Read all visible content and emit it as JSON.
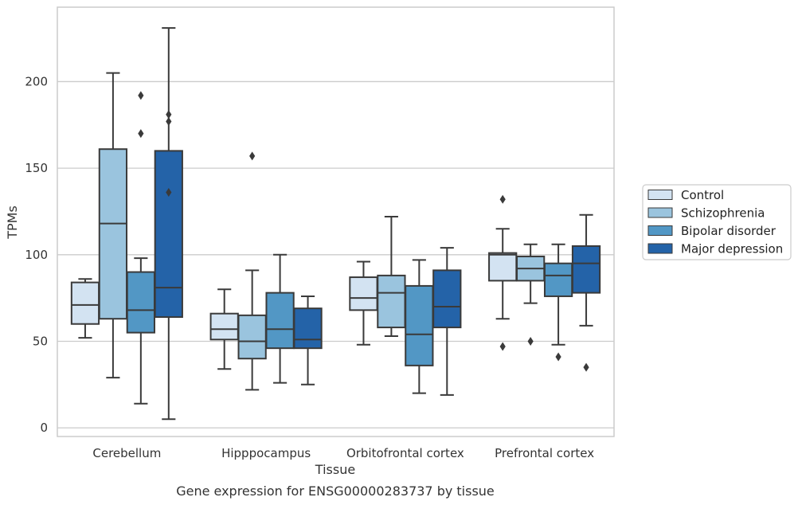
{
  "chart_data": {
    "type": "box",
    "title": "",
    "caption": "Gene expression for ENSG00000283737 by tissue",
    "xlabel": "Tissue",
    "ylabel": "TPMs",
    "ylim": [
      -5,
      243
    ],
    "yticks": [
      0,
      50,
      100,
      150,
      200
    ],
    "grid": "horizontal",
    "legend_position": "right",
    "categories": [
      "Cerebellum",
      "Hipppocampus",
      "Orbitofrontal cortex",
      "Prefrontal cortex"
    ],
    "series": [
      {
        "name": "Control",
        "color": "#d3e3f2",
        "boxes": [
          {
            "whislo": 52,
            "q1": 60,
            "med": 71,
            "q3": 84,
            "whishi": 86,
            "fliers": []
          },
          {
            "whislo": 34,
            "q1": 51,
            "med": 57,
            "q3": 66,
            "whishi": 80,
            "fliers": []
          },
          {
            "whislo": 48,
            "q1": 68,
            "med": 75,
            "q3": 87,
            "whishi": 96,
            "fliers": []
          },
          {
            "whislo": 63,
            "q1": 85,
            "med": 100,
            "q3": 101,
            "whishi": 115,
            "fliers": [
              47,
              132
            ]
          }
        ]
      },
      {
        "name": "Schizophrenia",
        "color": "#9ac4de",
        "boxes": [
          {
            "whislo": 29,
            "q1": 63,
            "med": 118,
            "q3": 161,
            "whishi": 205,
            "fliers": []
          },
          {
            "whislo": 22,
            "q1": 40,
            "med": 50,
            "q3": 65,
            "whishi": 91,
            "fliers": [
              157
            ]
          },
          {
            "whislo": 53,
            "q1": 58,
            "med": 78,
            "q3": 88,
            "whishi": 122,
            "fliers": []
          },
          {
            "whislo": 72,
            "q1": 85,
            "med": 92,
            "q3": 99,
            "whishi": 106,
            "fliers": [
              50
            ]
          }
        ]
      },
      {
        "name": "Bipolar disorder",
        "color": "#5297c5",
        "boxes": [
          {
            "whislo": 14,
            "q1": 55,
            "med": 68,
            "q3": 90,
            "whishi": 98,
            "fliers": [
              170,
              192
            ]
          },
          {
            "whislo": 26,
            "q1": 46,
            "med": 57,
            "q3": 78,
            "whishi": 100,
            "fliers": []
          },
          {
            "whislo": 20,
            "q1": 36,
            "med": 54,
            "q3": 82,
            "whishi": 97,
            "fliers": []
          },
          {
            "whislo": 48,
            "q1": 76,
            "med": 88,
            "q3": 95,
            "whishi": 106,
            "fliers": [
              41
            ]
          }
        ]
      },
      {
        "name": "Major depression",
        "color": "#2463a8",
        "boxes": [
          {
            "whislo": 5,
            "q1": 64,
            "med": 81,
            "q3": 160,
            "whishi": 231,
            "fliers": [
              136,
              177,
              181
            ]
          },
          {
            "whislo": 25,
            "q1": 46,
            "med": 51,
            "q3": 69,
            "whishi": 76,
            "fliers": []
          },
          {
            "whislo": 19,
            "q1": 58,
            "med": 70,
            "q3": 91,
            "whishi": 104,
            "fliers": []
          },
          {
            "whislo": 59,
            "q1": 78,
            "med": 95,
            "q3": 105,
            "whishi": 123,
            "fliers": [
              35
            ]
          }
        ]
      }
    ]
  }
}
